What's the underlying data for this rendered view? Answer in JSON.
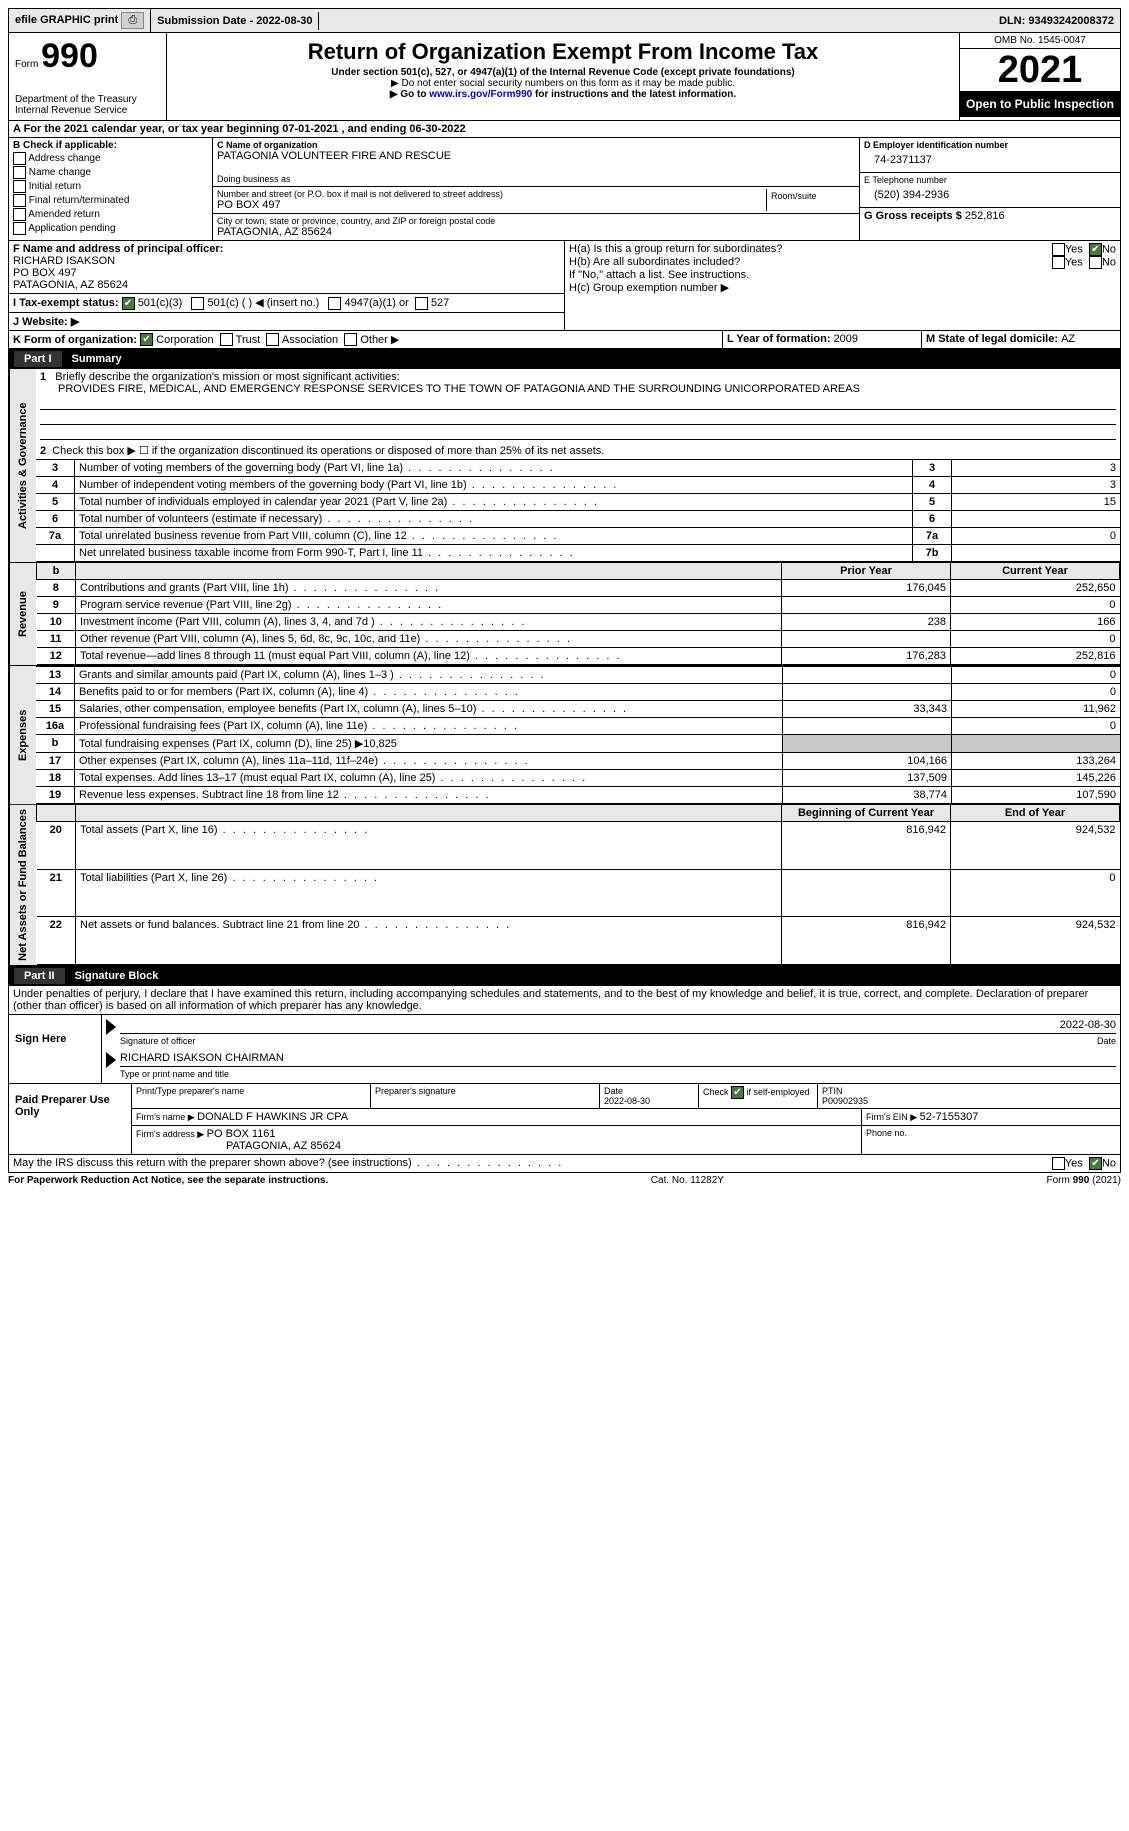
{
  "topbar": {
    "efile": "efile GRAPHIC print",
    "submission_label": "Submission Date - ",
    "submission_date": "2022-08-30",
    "dln_label": "DLN: ",
    "dln": "93493242008372"
  },
  "header": {
    "form_word": "Form",
    "form_num": "990",
    "dept": "Department of the Treasury\nInternal Revenue Service",
    "title": "Return of Organization Exempt From Income Tax",
    "sub1": "Under section 501(c), 527, or 4947(a)(1) of the Internal Revenue Code (except private foundations)",
    "sub2": "▶ Do not enter social security numbers on this form as it may be made public.",
    "sub3_pre": "▶ Go to ",
    "sub3_link": "www.irs.gov/Form990",
    "sub3_post": " for instructions and the latest information.",
    "omb": "OMB No. 1545-0047",
    "year": "2021",
    "inspect": "Open to Public Inspection"
  },
  "line_a": {
    "text_pre": "A For the 2021 calendar year, or tax year beginning ",
    "begin": "07-01-2021",
    "mid": "   , and ending ",
    "end": "06-30-2022"
  },
  "box_b": {
    "title": "B Check if applicable:",
    "items": [
      "Address change",
      "Name change",
      "Initial return",
      "Final return/terminated",
      "Amended return",
      "Application pending"
    ]
  },
  "box_c": {
    "label": "C Name of organization",
    "name": "PATAGONIA VOLUNTEER FIRE AND RESCUE",
    "dba_label": "Doing business as",
    "street_label": "Number and street (or P.O. box if mail is not delivered to street address)",
    "room_label": "Room/suite",
    "street": "PO BOX 497",
    "city_label": "City or town, state or province, country, and ZIP or foreign postal code",
    "city": "PATAGONIA, AZ  85624"
  },
  "box_d": {
    "label": "D Employer identification number",
    "value": "74-2371137"
  },
  "box_e": {
    "label": "E Telephone number",
    "value": "(520) 394-2936"
  },
  "box_g": {
    "label": "G Gross receipts $ ",
    "value": "252,816"
  },
  "box_f": {
    "label": "F Name and address of principal officer:",
    "name": "RICHARD ISAKSON",
    "street": "PO BOX 497",
    "city": "PATAGONIA, AZ  85624"
  },
  "box_h": {
    "a": "H(a)  Is this a group return for subordinates?",
    "b": "H(b)  Are all subordinates included?",
    "note": "If \"No,\" attach a list. See instructions.",
    "c": "H(c)  Group exemption number ▶",
    "yes": "Yes",
    "no": "No"
  },
  "box_i": {
    "label": "I   Tax-exempt status:",
    "o1": "501(c)(3)",
    "o2": "501(c) (  ) ◀ (insert no.)",
    "o3": "4947(a)(1) or",
    "o4": "527"
  },
  "box_j": {
    "label": "J   Website: ▶"
  },
  "box_k": {
    "label": "K Form of organization:",
    "o1": "Corporation",
    "o2": "Trust",
    "o3": "Association",
    "o4": "Other ▶"
  },
  "box_l": {
    "label": "L Year of formation: ",
    "value": "2009"
  },
  "box_m": {
    "label": "M State of legal domicile: ",
    "value": "AZ"
  },
  "part1": {
    "tab": "Part I",
    "title": "Summary",
    "vlabel1": "Activities & Governance",
    "vlabel2": "Revenue",
    "vlabel3": "Expenses",
    "vlabel4": "Net Assets or Fund Balances",
    "l1_label": "Briefly describe the organization's mission or most significant activities:",
    "l1_text": "PROVIDES FIRE, MEDICAL, AND EMERGENCY RESPONSE SERVICES TO THE TOWN OF PATAGONIA AND THE SURROUNDING UNICORPORATED AREAS",
    "l2": "Check this box ▶ ☐  if the organization discontinued its operations or disposed of more than 25% of its net assets.",
    "rows_ag": [
      {
        "n": "3",
        "t": "Number of voting members of the governing body (Part VI, line 1a)",
        "c": "3",
        "v": "3"
      },
      {
        "n": "4",
        "t": "Number of independent voting members of the governing body (Part VI, line 1b)",
        "c": "4",
        "v": "3"
      },
      {
        "n": "5",
        "t": "Total number of individuals employed in calendar year 2021 (Part V, line 2a)",
        "c": "5",
        "v": "15"
      },
      {
        "n": "6",
        "t": "Total number of volunteers (estimate if necessary)",
        "c": "6",
        "v": ""
      },
      {
        "n": "7a",
        "t": "Total unrelated business revenue from Part VIII, column (C), line 12",
        "c": "7a",
        "v": "0"
      },
      {
        "n": "",
        "t": "Net unrelated business taxable income from Form 990-T, Part I, line 11",
        "c": "7b",
        "v": ""
      }
    ],
    "col_prior": "Prior Year",
    "col_current": "Current Year",
    "rows_rev": [
      {
        "n": "8",
        "t": "Contributions and grants (Part VIII, line 1h)",
        "p": "176,045",
        "c": "252,650"
      },
      {
        "n": "9",
        "t": "Program service revenue (Part VIII, line 2g)",
        "p": "",
        "c": "0"
      },
      {
        "n": "10",
        "t": "Investment income (Part VIII, column (A), lines 3, 4, and 7d )",
        "p": "238",
        "c": "166"
      },
      {
        "n": "11",
        "t": "Other revenue (Part VIII, column (A), lines 5, 6d, 8c, 9c, 10c, and 11e)",
        "p": "",
        "c": "0"
      },
      {
        "n": "12",
        "t": "Total revenue—add lines 8 through 11 (must equal Part VIII, column (A), line 12)",
        "p": "176,283",
        "c": "252,816"
      }
    ],
    "rows_exp": [
      {
        "n": "13",
        "t": "Grants and similar amounts paid (Part IX, column (A), lines 1–3 )",
        "p": "",
        "c": "0"
      },
      {
        "n": "14",
        "t": "Benefits paid to or for members (Part IX, column (A), line 4)",
        "p": "",
        "c": "0"
      },
      {
        "n": "15",
        "t": "Salaries, other compensation, employee benefits (Part IX, column (A), lines 5–10)",
        "p": "33,343",
        "c": "11,962"
      },
      {
        "n": "16a",
        "t": "Professional fundraising fees (Part IX, column (A), line 11e)",
        "p": "",
        "c": "0"
      }
    ],
    "l16b_pre": "Total fundraising expenses (Part IX, column (D), line 25) ▶",
    "l16b_val": "10,825",
    "rows_exp2": [
      {
        "n": "17",
        "t": "Other expenses (Part IX, column (A), lines 11a–11d, 11f–24e)",
        "p": "104,166",
        "c": "133,264"
      },
      {
        "n": "18",
        "t": "Total expenses. Add lines 13–17 (must equal Part IX, column (A), line 25)",
        "p": "137,509",
        "c": "145,226"
      },
      {
        "n": "19",
        "t": "Revenue less expenses. Subtract line 18 from line 12",
        "p": "38,774",
        "c": "107,590"
      }
    ],
    "col_begin": "Beginning of Current Year",
    "col_end": "End of Year",
    "rows_net": [
      {
        "n": "20",
        "t": "Total assets (Part X, line 16)",
        "p": "816,942",
        "c": "924,532"
      },
      {
        "n": "21",
        "t": "Total liabilities (Part X, line 26)",
        "p": "",
        "c": "0"
      },
      {
        "n": "22",
        "t": "Net assets or fund balances. Subtract line 21 from line 20",
        "p": "816,942",
        "c": "924,532"
      }
    ]
  },
  "part2": {
    "tab": "Part II",
    "title": "Signature Block",
    "decl": "Under penalties of perjury, I declare that I have examined this return, including accompanying schedules and statements, and to the best of my knowledge and belief, it is true, correct, and complete. Declaration of preparer (other than officer) is based on all information of which preparer has any knowledge.",
    "sign_here": "Sign Here",
    "sig_officer": "Signature of officer",
    "date_label": "Date",
    "sig_date": "2022-08-30",
    "name_title": "RICHARD ISAKSON  CHAIRMAN",
    "name_title_label": "Type or print name and title",
    "paid": "Paid Preparer Use Only",
    "prep_name_label": "Print/Type preparer's name",
    "prep_sig_label": "Preparer's signature",
    "prep_date_label": "Date",
    "prep_date": "2022-08-30",
    "check_if": "Check ☑ if self-employed",
    "ptin_label": "PTIN",
    "ptin": "P00902935",
    "firm_name_label": "Firm's name    ▶ ",
    "firm_name": "DONALD F HAWKINS JR CPA",
    "firm_ein_label": "Firm's EIN ▶ ",
    "firm_ein": "52-7155307",
    "firm_addr_label": "Firm's address ▶ ",
    "firm_addr1": "PO BOX 1161",
    "firm_addr2": "PATAGONIA, AZ  85624",
    "phone_label": "Phone no.",
    "discuss": "May the IRS discuss this return with the preparer shown above? (see instructions)"
  },
  "footer": {
    "left": "For Paperwork Reduction Act Notice, see the separate instructions.",
    "mid": "Cat. No. 11282Y",
    "right": "Form 990 (2021)"
  }
}
